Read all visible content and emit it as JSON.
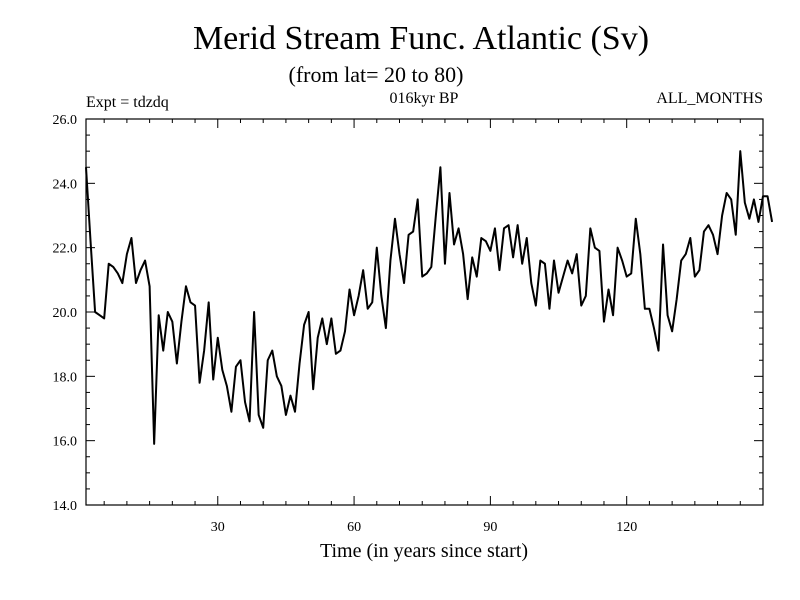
{
  "chart_data": {
    "type": "line",
    "title": "Merid Stream Func. Atlantic (Sv)",
    "subtitle": "(from lat= 20 to 80)",
    "annotations": {
      "left": "Expt = tdzdq",
      "center": "016kyr BP",
      "right": "ALL_MONTHS"
    },
    "xlabel": "Time (in years since start)",
    "ylabel": "",
    "xlim": [
      1,
      150
    ],
    "ylim": [
      14.0,
      26.0
    ],
    "x_ticks": [
      30,
      60,
      90,
      120
    ],
    "x_tick_labels": [
      "30",
      "60",
      "90",
      "120"
    ],
    "y_ticks": [
      14.0,
      16.0,
      18.0,
      20.0,
      22.0,
      24.0,
      26.0
    ],
    "y_tick_labels": [
      "14.0",
      "16.0",
      "18.0",
      "20.0",
      "22.0",
      "24.0",
      "26.0"
    ],
    "x_minor_step": 5,
    "y_minor_step": 0.5,
    "grid": false,
    "series": [
      {
        "name": "Merid Stream Func. Atlantic",
        "color": "#000000",
        "x_start": 1,
        "x_step": 1,
        "values": [
          24.5,
          22.2,
          20.0,
          19.9,
          19.8,
          21.5,
          21.4,
          21.2,
          20.9,
          21.8,
          22.3,
          20.9,
          21.3,
          21.6,
          20.8,
          15.9,
          19.9,
          18.8,
          20.0,
          19.7,
          18.4,
          19.7,
          20.8,
          20.3,
          20.2,
          17.8,
          18.8,
          20.3,
          17.9,
          19.2,
          18.2,
          17.7,
          16.9,
          18.3,
          18.5,
          17.2,
          16.6,
          20.0,
          16.8,
          16.4,
          18.5,
          18.8,
          18.0,
          17.7,
          16.8,
          17.4,
          16.9,
          18.4,
          19.6,
          20.0,
          17.6,
          19.2,
          19.8,
          19.0,
          19.8,
          18.7,
          18.8,
          19.4,
          20.7,
          19.9,
          20.5,
          21.3,
          20.1,
          20.3,
          22.0,
          20.5,
          19.5,
          21.6,
          22.9,
          21.8,
          20.9,
          22.4,
          22.5,
          23.5,
          21.1,
          21.2,
          21.4,
          23.0,
          24.5,
          21.5,
          23.7,
          22.1,
          22.6,
          21.8,
          20.4,
          21.7,
          21.1,
          22.3,
          22.2,
          21.9,
          22.6,
          21.3,
          22.6,
          22.7,
          21.7,
          22.7,
          21.5,
          22.3,
          20.9,
          20.2,
          21.6,
          21.5,
          20.1,
          21.6,
          20.6,
          21.1,
          21.6,
          21.2,
          21.8,
          20.2,
          20.5,
          22.6,
          22.0,
          21.9,
          19.7,
          20.7,
          19.9,
          22.0,
          21.6,
          21.1,
          21.2,
          22.9,
          21.8,
          20.1,
          20.1,
          19.5,
          18.8,
          22.1,
          19.9,
          19.4,
          20.4,
          21.6,
          21.8,
          22.3,
          21.1,
          21.3,
          22.5,
          22.7,
          22.4,
          21.8,
          23.0,
          23.7,
          23.5,
          22.4,
          25.0,
          23.4,
          22.9,
          23.5,
          22.8,
          23.6,
          23.6,
          22.8
        ]
      }
    ]
  }
}
